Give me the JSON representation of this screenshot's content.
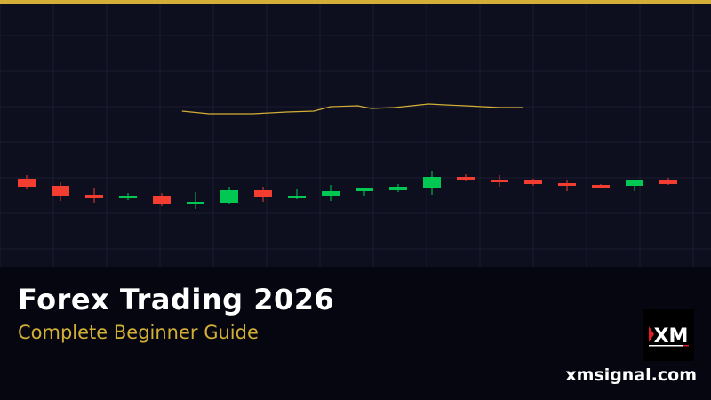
{
  "banner": {
    "title": "Forex Trading 2026",
    "subtitle": "Complete Beginner Guide",
    "website": "xmsignal.com",
    "logo_text": "XM",
    "colors": {
      "accent": "#d4af37",
      "up": "#00c853",
      "down": "#f23d30",
      "background": "#0d0f1e"
    }
  },
  "chart_data": {
    "type": "candlestick",
    "grid": true,
    "candles": [
      {
        "open": 99,
        "close": 90,
        "high": 103,
        "low": 87
      },
      {
        "open": 91,
        "close": 80,
        "high": 95,
        "low": 74
      },
      {
        "open": 81,
        "close": 77,
        "high": 88,
        "low": 72
      },
      {
        "open": 77,
        "close": 80,
        "high": 83,
        "low": 75
      },
      {
        "open": 80,
        "close": 70,
        "high": 83,
        "low": 68
      },
      {
        "open": 70,
        "close": 73,
        "high": 84,
        "low": 65
      },
      {
        "open": 72,
        "close": 86,
        "high": 90,
        "low": 71
      },
      {
        "open": 86,
        "close": 78,
        "high": 90,
        "low": 73
      },
      {
        "open": 77,
        "close": 80,
        "high": 87,
        "low": 76
      },
      {
        "open": 79,
        "close": 85,
        "high": 92,
        "low": 74
      },
      {
        "open": 85,
        "close": 88,
        "high": 88,
        "low": 79
      },
      {
        "open": 86,
        "close": 90,
        "high": 93,
        "low": 84
      },
      {
        "open": 89,
        "close": 101,
        "high": 108,
        "low": 81
      },
      {
        "open": 101,
        "close": 97,
        "high": 104,
        "low": 96
      },
      {
        "open": 98,
        "close": 95,
        "high": 103,
        "low": 90
      },
      {
        "open": 97,
        "close": 93,
        "high": 99,
        "low": 91
      },
      {
        "open": 94,
        "close": 91,
        "high": 97,
        "low": 85
      },
      {
        "open": 92,
        "close": 89,
        "high": 93,
        "low": 89
      },
      {
        "open": 91,
        "close": 97,
        "high": 98,
        "low": 85
      },
      {
        "open": 97,
        "close": 93,
        "high": 100,
        "low": 92
      }
    ],
    "moving_average": [
      {
        "i": 4.6,
        "v": 175
      },
      {
        "i": 5.4,
        "v": 172
      },
      {
        "i": 6.7,
        "v": 172
      },
      {
        "i": 7.7,
        "v": 174
      },
      {
        "i": 8.5,
        "v": 175
      },
      {
        "i": 9.0,
        "v": 180
      },
      {
        "i": 9.8,
        "v": 181
      },
      {
        "i": 10.2,
        "v": 178
      },
      {
        "i": 10.9,
        "v": 179
      },
      {
        "i": 11.9,
        "v": 183
      },
      {
        "i": 12.4,
        "v": 182
      },
      {
        "i": 13.0,
        "v": 181
      },
      {
        "i": 14.0,
        "v": 179
      },
      {
        "i": 14.7,
        "v": 179
      }
    ]
  }
}
